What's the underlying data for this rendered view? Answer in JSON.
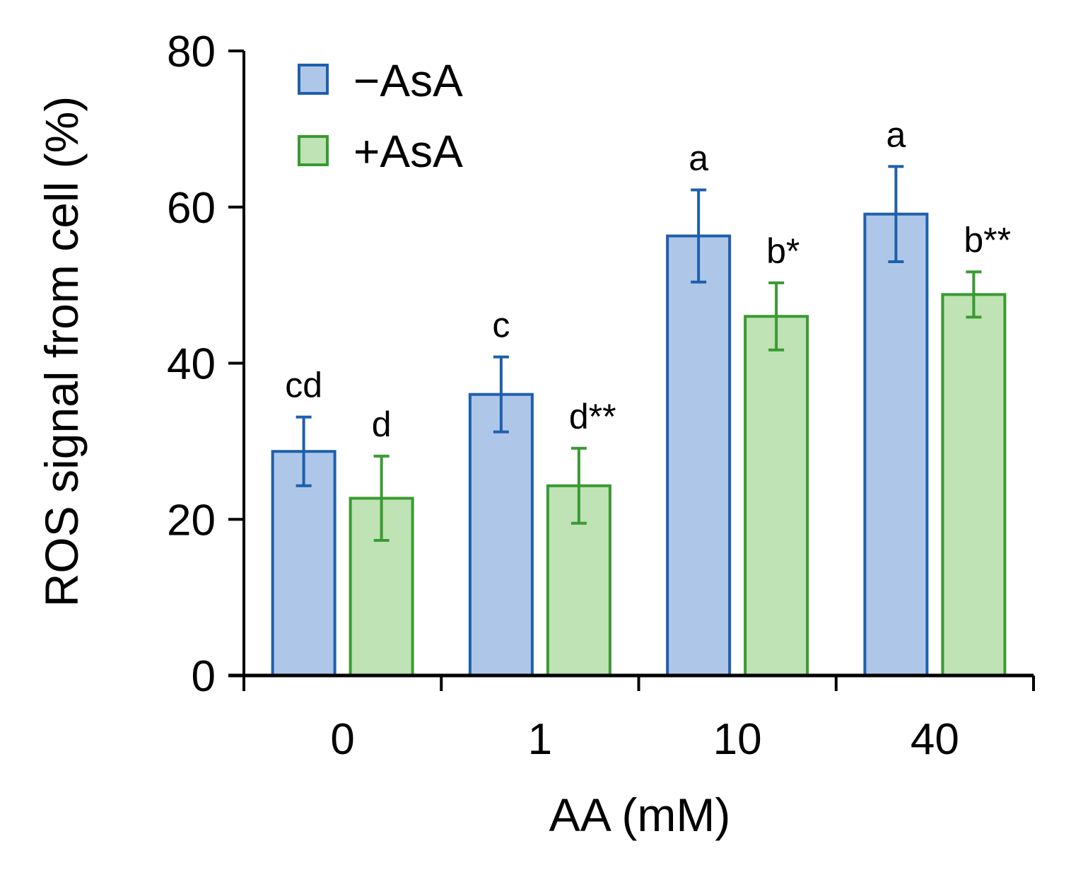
{
  "chart_data": {
    "type": "bar",
    "title": "",
    "xlabel": "AA (mM)",
    "ylabel": "ROS signal from cell (%)",
    "ylim": [
      0,
      80
    ],
    "yticks": [
      0,
      20,
      40,
      60,
      80
    ],
    "categories": [
      "0",
      "1",
      "10",
      "40"
    ],
    "grid": false,
    "legend_position": "top-left",
    "series": [
      {
        "name": "−AsA",
        "fill": "#aec7e8",
        "stroke": "#1f5fad",
        "values": [
          28.7,
          36.0,
          56.3,
          59.1
        ],
        "errors": [
          4.4,
          4.8,
          5.9,
          6.1
        ],
        "labels": [
          "cd",
          "c",
          "a",
          "a"
        ]
      },
      {
        "name": "+AsA",
        "fill": "#bfe3b4",
        "stroke": "#3a9a32",
        "values": [
          22.7,
          24.3,
          46.0,
          48.8
        ],
        "errors": [
          5.4,
          4.8,
          4.3,
          2.9
        ],
        "labels": [
          "d",
          "d**",
          "b*",
          "b**"
        ]
      }
    ]
  }
}
